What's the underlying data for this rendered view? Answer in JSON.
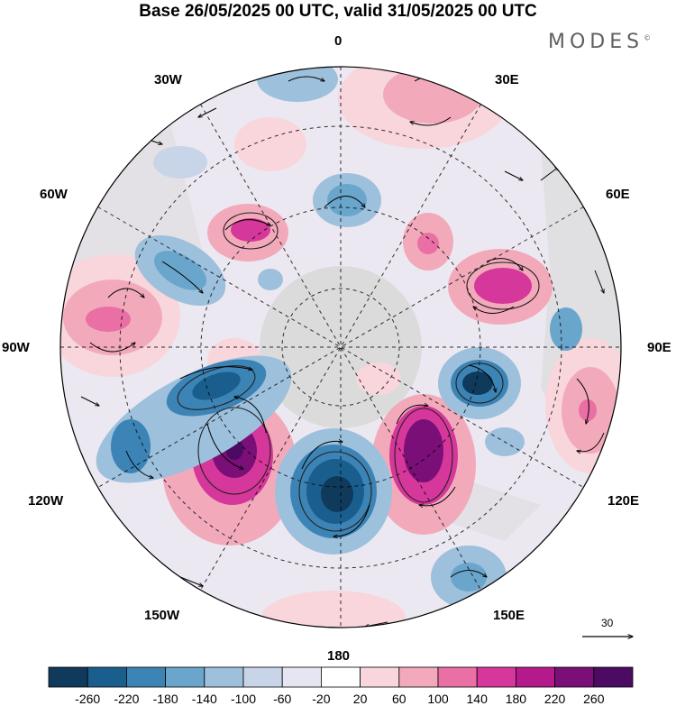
{
  "title": "Base 26/05/2025 00 UTC, valid 31/05/2025 00 UTC",
  "brand": "MODES",
  "brand_mark": "©",
  "longitude_labels": {
    "lon_0": "0",
    "lon_30e": "30E",
    "lon_60e": "60E",
    "lon_90e": "90E",
    "lon_120e": "120E",
    "lon_150e": "150E",
    "lon_180": "180",
    "lon_150w": "150W",
    "lon_120w": "120W",
    "lon_90w": "90W",
    "lon_60w": "60W",
    "lon_30w": "30W"
  },
  "wind_scale": {
    "value": "30"
  },
  "colorbar": {
    "labels": [
      "-260",
      "-220",
      "-180",
      "-140",
      "-100",
      "-60",
      "-20",
      "20",
      "60",
      "100",
      "140",
      "180",
      "220",
      "260"
    ],
    "colors": [
      "#0f3a5c",
      "#1a5e8e",
      "#3c84b6",
      "#6aa5cc",
      "#9dc0dc",
      "#c8d4e8",
      "#e6e6f2",
      "#ffffff",
      "#f8d6dc",
      "#f2aabb",
      "#ea6fa4",
      "#d6379a",
      "#b41a8c",
      "#7a0f77",
      "#4b0b62"
    ]
  },
  "anomaly_colors": {
    "neg_strong": "#0f3a5c",
    "neg_mid": "#3c84b6",
    "neg_weak": "#9dc0dc",
    "pos_weak": "#f2aabb",
    "pos_mid": "#d6379a",
    "pos_strong": "#7a0f77",
    "land": "#d9d9d9"
  }
}
